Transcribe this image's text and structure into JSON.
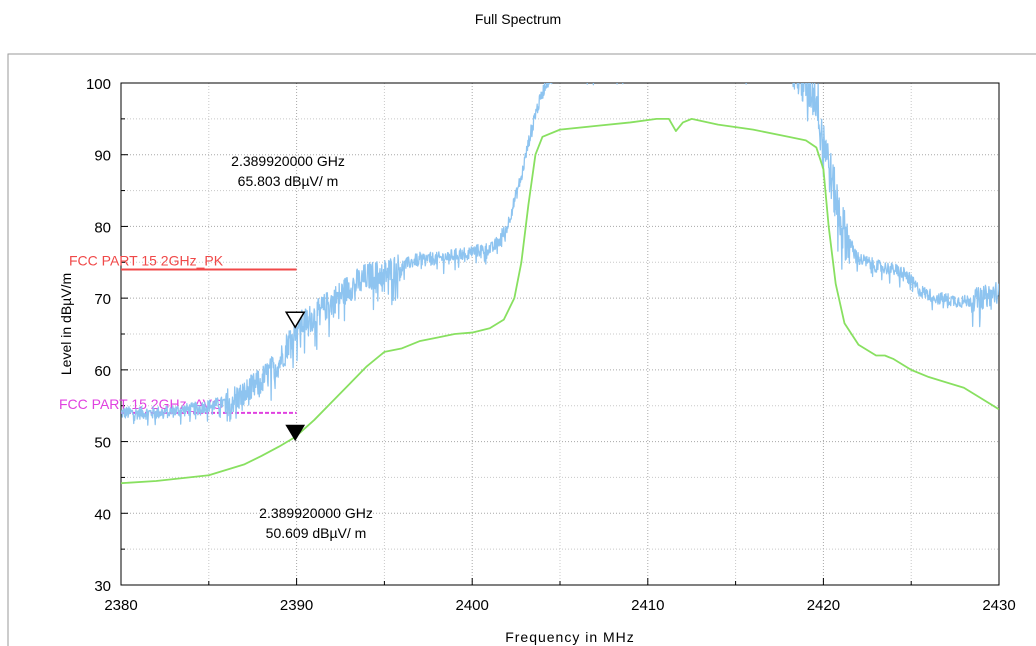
{
  "chart_data": {
    "type": "line",
    "title": "Full Spectrum",
    "xlabel": "Frequency in MHz",
    "ylabel": "Level in dBµV/m",
    "xlim": [
      2380,
      2430
    ],
    "ylim": [
      30,
      100
    ],
    "x_ticks": [
      "2380",
      "2390",
      "2400",
      "2410",
      "2420",
      "2430"
    ],
    "y_ticks": [
      "100",
      "90",
      "80",
      "70",
      "60",
      "50",
      "40",
      "30"
    ],
    "grid": true,
    "series": [
      {
        "name": "",
        "color": "#8EC4F0",
        "noisy": true,
        "x": [
          2380,
          2382,
          2384,
          2386,
          2387,
          2388,
          2389,
          2389.9,
          2391,
          2392,
          2393,
          2394,
          2395,
          2396,
          2397,
          2398,
          2399,
          2400,
          2401.2,
          2402,
          2402.8,
          2403.5,
          2404.2,
          2405,
          2418,
          2419,
          2419.6,
          2420,
          2420.5,
          2421.2,
          2422,
          2423,
          2424,
          2424.6,
          2425.5,
          2426.5,
          2428,
          2429,
          2430
        ],
        "y": [
          54,
          54,
          54.5,
          55.5,
          56.5,
          58.5,
          61,
          65.8,
          67.5,
          69.5,
          71.5,
          73,
          73.5,
          74.5,
          75.5,
          75.5,
          76,
          76.5,
          77,
          80,
          87,
          95,
          100,
          102,
          102,
          100,
          98,
          93,
          86,
          79,
          75.5,
          74.5,
          74,
          73.5,
          71,
          70,
          69.5,
          70,
          71
        ]
      },
      {
        "name": "",
        "color": "#88E060",
        "noisy": false,
        "x": [
          2380,
          2382,
          2385,
          2387,
          2388,
          2389,
          2389.9,
          2391,
          2392,
          2393,
          2394,
          2395,
          2396,
          2397,
          2398,
          2399,
          2400,
          2401,
          2401.8,
          2402.4,
          2402.8,
          2403.2,
          2403.6,
          2404,
          2405,
          2407,
          2409,
          2410.5,
          2411.2,
          2411.6,
          2412,
          2412.5,
          2414,
          2416,
          2418,
          2419,
          2419.6,
          2420,
          2420.3,
          2420.7,
          2421.2,
          2422,
          2423,
          2423.5,
          2424,
          2425,
          2426,
          2428,
          2429,
          2430
        ],
        "y": [
          44.2,
          44.5,
          45.3,
          46.8,
          48,
          49.3,
          50.6,
          53,
          55.5,
          58,
          60.5,
          62.5,
          63,
          64,
          64.5,
          65,
          65.2,
          65.8,
          67,
          70,
          75,
          83,
          90,
          92.5,
          93.5,
          94,
          94.5,
          95,
          95,
          93.3,
          94.5,
          95,
          94.2,
          93.5,
          92.5,
          92,
          91,
          88,
          80,
          72,
          66.5,
          63.5,
          62,
          62,
          61.5,
          60,
          59,
          57.5,
          56,
          54.5
        ]
      }
    ],
    "limits": [
      {
        "name": "FCC PART 15 2GHz_PK",
        "value": 74,
        "color": "#F04848",
        "dash": false
      },
      {
        "name": "FCC PART 15 2GHz_AVG",
        "value": 54,
        "color": "#E040E0",
        "dash": true
      }
    ],
    "markers": [
      {
        "x": 2389.92,
        "y": 65.803,
        "freq_text": "2.389920000 GHz",
        "level_text": "65.803 dBµV/ m",
        "style": "open"
      },
      {
        "x": 2389.92,
        "y": 50.609,
        "freq_text": "2.389920000 GHz",
        "level_text": "50.609 dBµV/ m",
        "style": "filled"
      }
    ]
  }
}
